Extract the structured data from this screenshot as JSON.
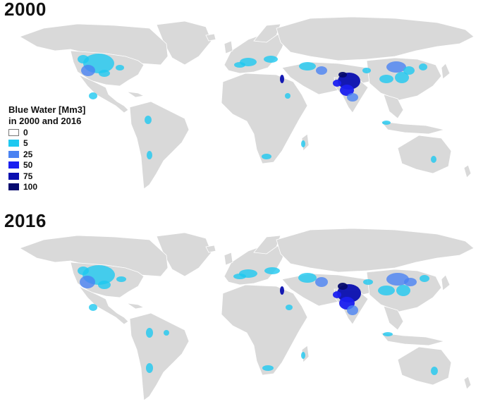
{
  "panels": [
    {
      "year": "2000"
    },
    {
      "year": "2016"
    }
  ],
  "legend": {
    "title_line1": "Blue Water [Mm3]",
    "title_line2": "in 2000 and 2016",
    "items": [
      {
        "label": "0",
        "color": "#ffffff"
      },
      {
        "label": "5",
        "color": "#1ec8f0"
      },
      {
        "label": "25",
        "color": "#4a82f2"
      },
      {
        "label": "50",
        "color": "#1a1ff0"
      },
      {
        "label": "75",
        "color": "#0a0fb0"
      },
      {
        "label": "100",
        "color": "#050a6e"
      }
    ]
  },
  "colors": {
    "land": "#d9d9d9",
    "borders": "#ffffff"
  }
}
